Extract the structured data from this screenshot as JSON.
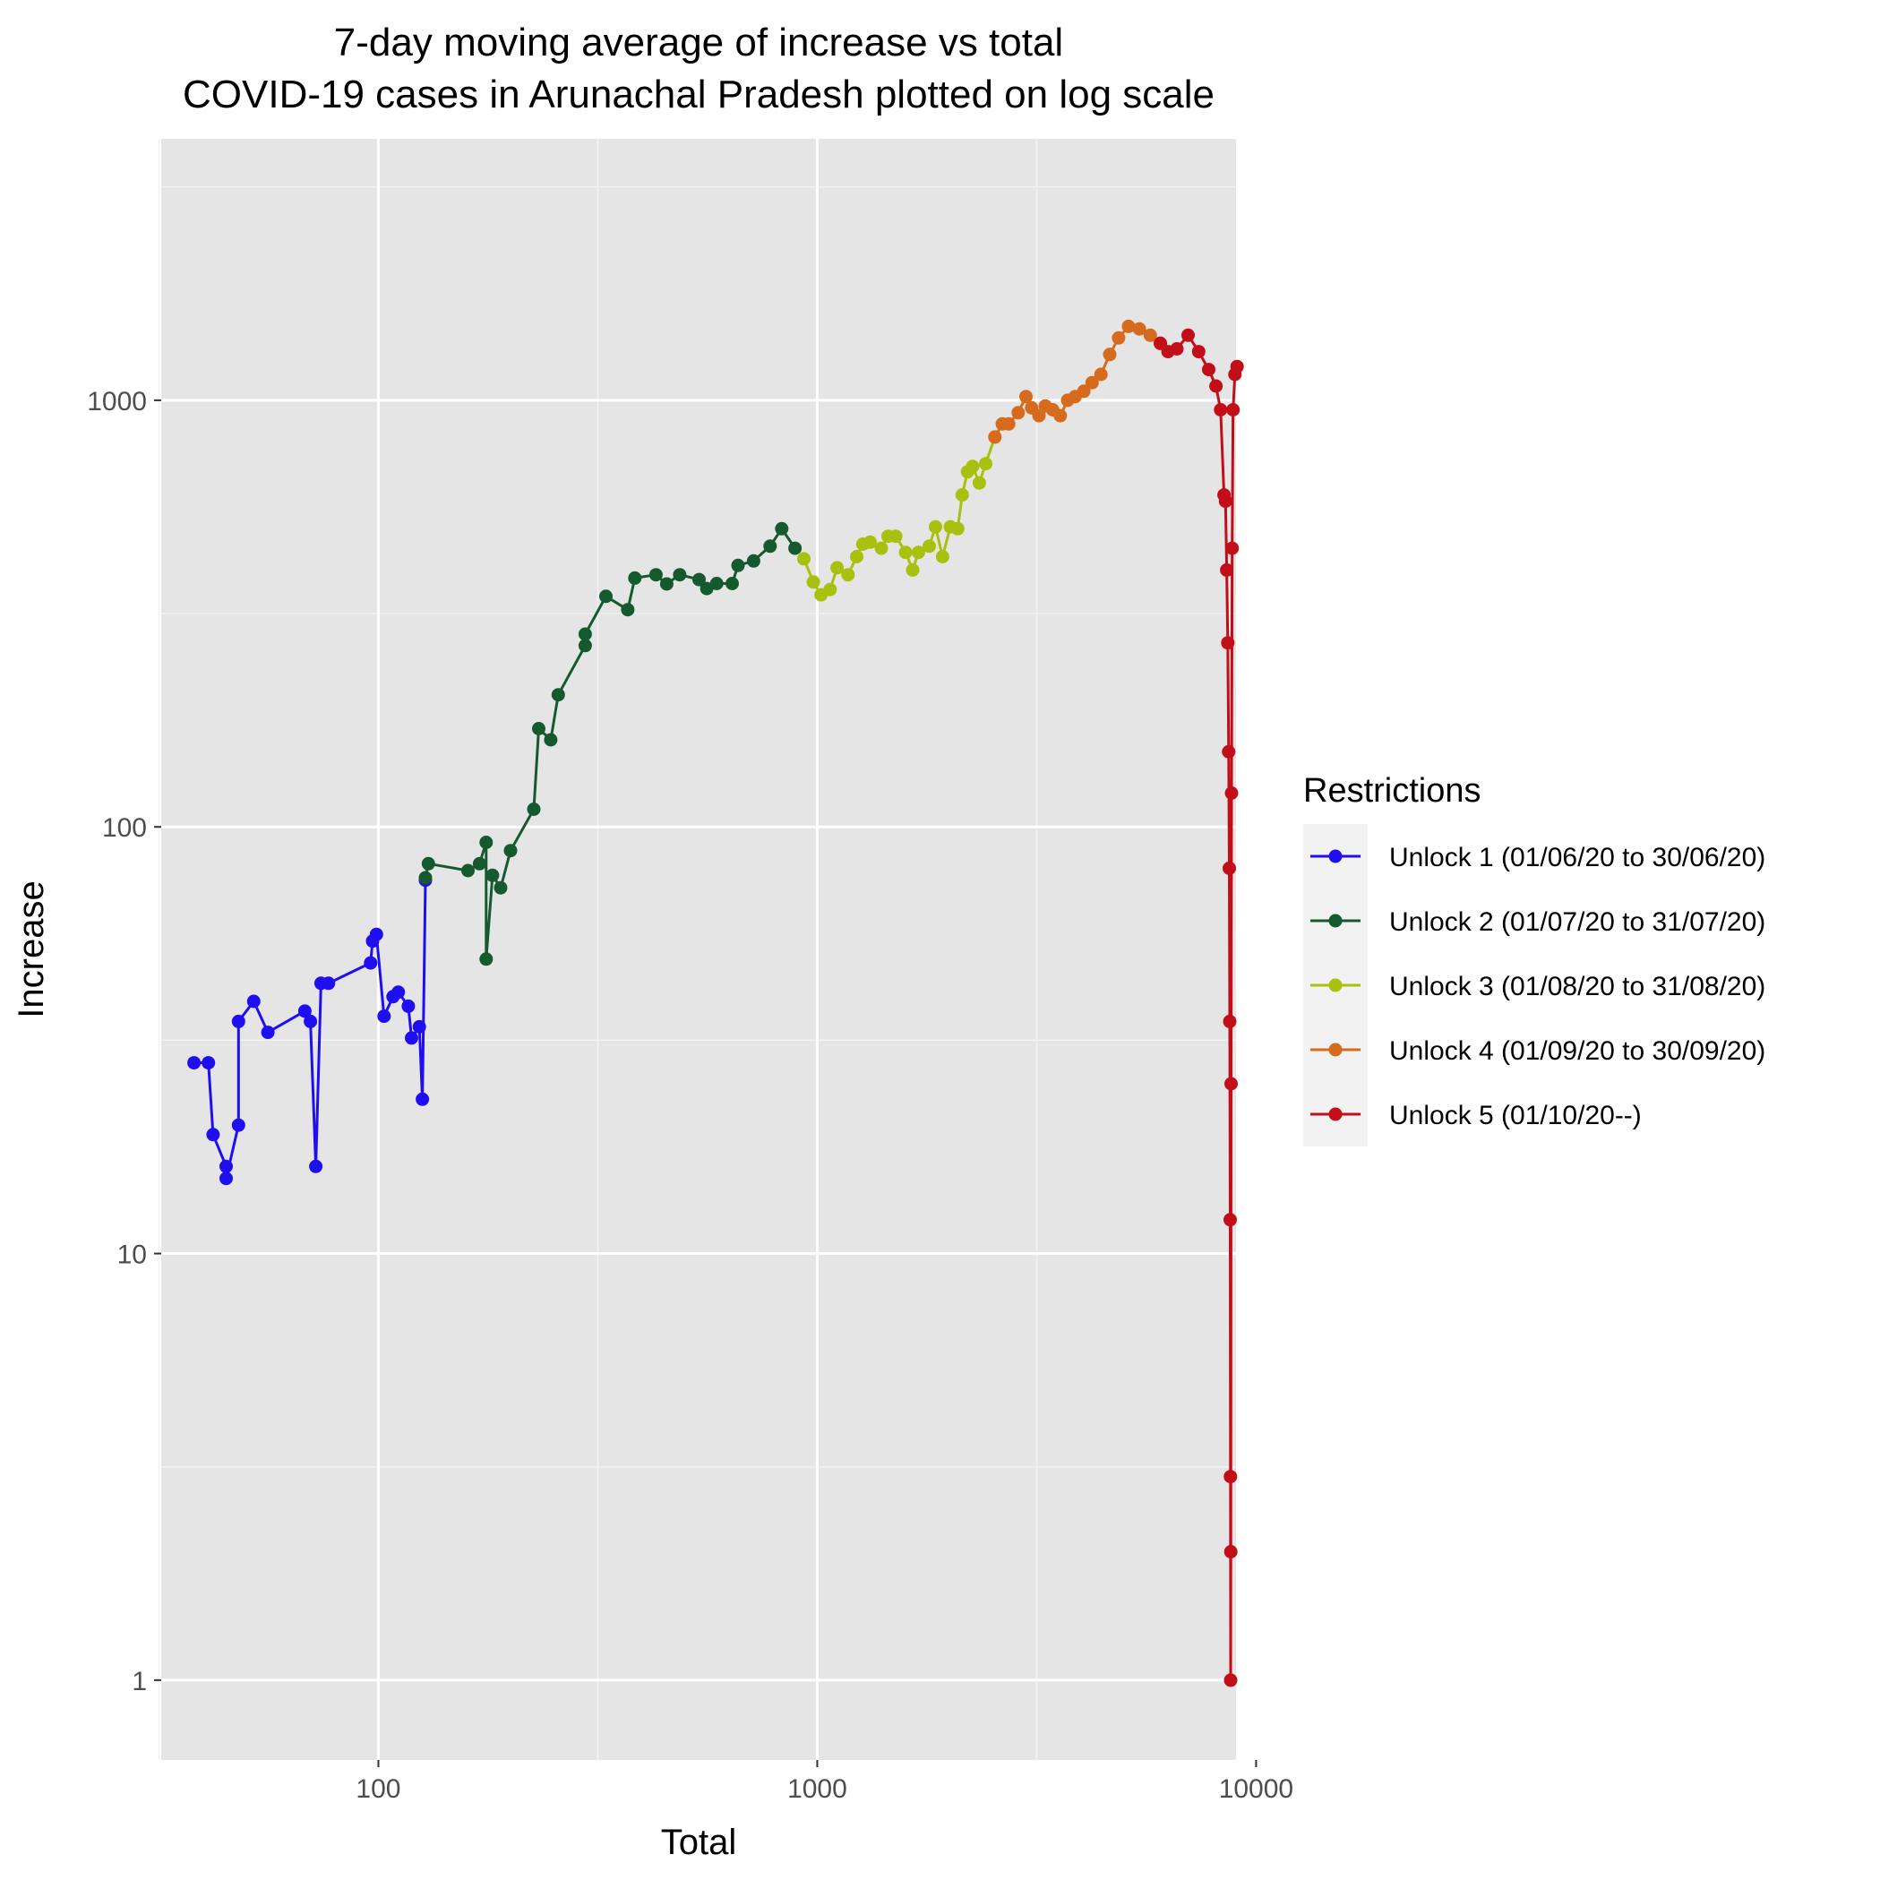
{
  "chart_data": {
    "type": "line",
    "title_lines": [
      "7-day moving average of increase vs total",
      "COVID-19 cases in Arunachal Pradesh plotted on log scale"
    ],
    "xlabel": "Total",
    "ylabel": "Increase",
    "x_scale": "log10",
    "y_scale": "log10",
    "xlim": [
      32,
      9000
    ],
    "ylim": [
      0.65,
      4100
    ],
    "x_ticks": [
      100,
      1000,
      10000
    ],
    "x_tick_labels": [
      "100",
      "1000",
      "10000"
    ],
    "y_ticks": [
      1,
      10,
      100,
      1000
    ],
    "y_tick_labels": [
      "1",
      "10",
      "100",
      "1000"
    ],
    "grid": true,
    "legend": {
      "title": "Restrictions",
      "position": "right"
    },
    "series": [
      {
        "name": "Unlock 1 (01/06/20 to 30/06/20)",
        "color": "#1f0ff0",
        "points": [
          [
            38,
            28
          ],
          [
            41,
            28
          ],
          [
            42,
            19
          ],
          [
            45,
            16
          ],
          [
            45,
            15
          ],
          [
            48,
            20
          ],
          [
            48,
            35
          ],
          [
            52,
            39
          ],
          [
            56,
            33
          ],
          [
            68,
            37
          ],
          [
            70,
            35
          ],
          [
            72,
            16
          ],
          [
            74,
            43
          ],
          [
            77,
            43
          ],
          [
            96,
            48
          ],
          [
            97,
            54
          ],
          [
            99,
            56
          ],
          [
            103,
            36
          ],
          [
            108,
            40
          ],
          [
            111,
            41
          ],
          [
            117,
            38
          ],
          [
            119,
            32
          ],
          [
            124,
            34
          ],
          [
            126,
            23
          ],
          [
            128,
            75
          ]
        ]
      },
      {
        "name": "Unlock 2 (01/07/20 to 31/07/20)",
        "color": "#145a2e",
        "points": [
          [
            128,
            76
          ],
          [
            130,
            82
          ],
          [
            160,
            79
          ],
          [
            170,
            82
          ],
          [
            176,
            92
          ],
          [
            176,
            49
          ],
          [
            182,
            77
          ],
          [
            190,
            72
          ],
          [
            200,
            88
          ],
          [
            226,
            110
          ],
          [
            232,
            170
          ],
          [
            247,
            160
          ],
          [
            257,
            204
          ],
          [
            296,
            266
          ],
          [
            296,
            283
          ],
          [
            330,
            347
          ],
          [
            370,
            323
          ],
          [
            384,
            383
          ],
          [
            429,
            390
          ],
          [
            454,
            371
          ],
          [
            486,
            390
          ],
          [
            538,
            380
          ],
          [
            560,
            362
          ],
          [
            590,
            372
          ],
          [
            640,
            372
          ],
          [
            660,
            410
          ],
          [
            716,
            420
          ],
          [
            781,
            455
          ],
          [
            830,
            500
          ],
          [
            890,
            450
          ]
        ]
      },
      {
        "name": "Unlock 3 (01/08/20 to 31/08/20)",
        "color": "#a8c00e",
        "points": [
          [
            932,
            425
          ],
          [
            980,
            375
          ],
          [
            1020,
            350
          ],
          [
            1070,
            360
          ],
          [
            1110,
            405
          ],
          [
            1175,
            390
          ],
          [
            1230,
            430
          ],
          [
            1270,
            460
          ],
          [
            1320,
            465
          ],
          [
            1400,
            450
          ],
          [
            1450,
            480
          ],
          [
            1510,
            480
          ],
          [
            1590,
            440
          ],
          [
            1650,
            400
          ],
          [
            1700,
            440
          ],
          [
            1800,
            455
          ],
          [
            1860,
            505
          ],
          [
            1930,
            430
          ],
          [
            2010,
            505
          ],
          [
            2090,
            500
          ],
          [
            2140,
            600
          ],
          [
            2200,
            680
          ],
          [
            2260,
            700
          ],
          [
            2340,
            640
          ],
          [
            2420,
            710
          ],
          [
            2540,
            820
          ]
        ]
      },
      {
        "name": "Unlock 4 (01/09/20 to 30/09/20)",
        "color": "#d66b1d",
        "points": [
          [
            2540,
            820
          ],
          [
            2640,
            880
          ],
          [
            2730,
            880
          ],
          [
            2870,
            935
          ],
          [
            2990,
            1020
          ],
          [
            3080,
            960
          ],
          [
            3200,
            920
          ],
          [
            3310,
            970
          ],
          [
            3440,
            950
          ],
          [
            3580,
            920
          ],
          [
            3720,
            1000
          ],
          [
            3870,
            1020
          ],
          [
            4050,
            1050
          ],
          [
            4230,
            1100
          ],
          [
            4430,
            1150
          ],
          [
            4640,
            1280
          ],
          [
            4860,
            1400
          ],
          [
            5120,
            1490
          ],
          [
            5420,
            1470
          ],
          [
            5740,
            1420
          ],
          [
            6050,
            1360
          ]
        ]
      },
      {
        "name": "Unlock 5 (01/10/20--)",
        "color": "#c20e18",
        "points": [
          [
            6050,
            1360
          ],
          [
            6300,
            1300
          ],
          [
            6600,
            1320
          ],
          [
            7000,
            1420
          ],
          [
            7400,
            1300
          ],
          [
            7800,
            1180
          ],
          [
            8100,
            1080
          ],
          [
            8300,
            950
          ],
          [
            8450,
            600
          ],
          [
            8520,
            580
          ],
          [
            8570,
            400
          ],
          [
            8620,
            270
          ],
          [
            8660,
            150
          ],
          [
            8690,
            80
          ],
          [
            8710,
            35
          ],
          [
            8730,
            12
          ],
          [
            8740,
            3
          ],
          [
            8750,
            1
          ],
          [
            8760,
            2
          ],
          [
            8770,
            25
          ],
          [
            8790,
            120
          ],
          [
            8820,
            450
          ],
          [
            8860,
            950
          ],
          [
            8950,
            1150
          ],
          [
            9050,
            1200
          ]
        ]
      }
    ]
  }
}
